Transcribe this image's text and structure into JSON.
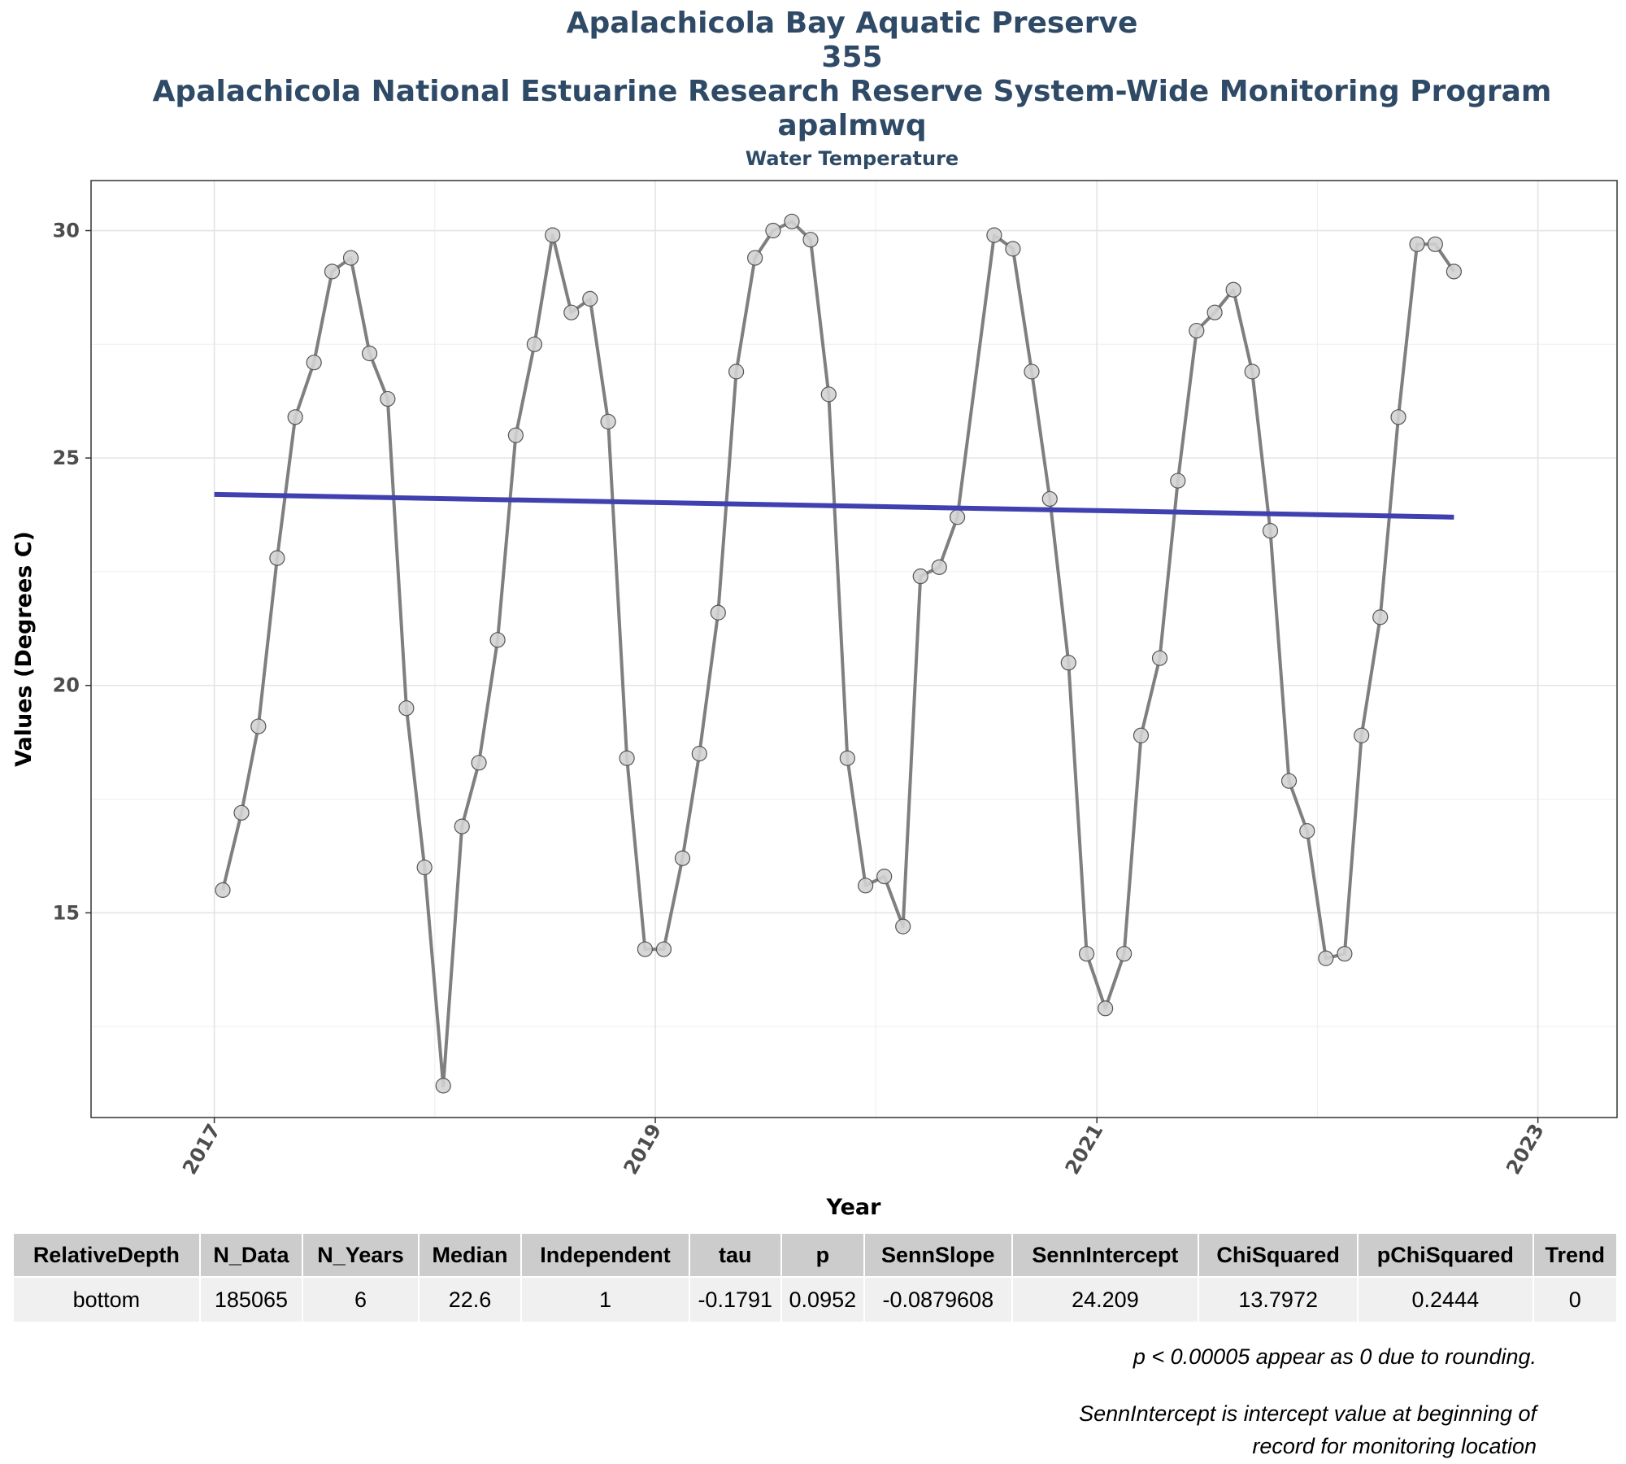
{
  "titles": {
    "line1": "Apalachicola Bay Aquatic Preserve",
    "line2": "355",
    "line3": "Apalachicola National Estuarine Research Reserve System-Wide Monitoring Program",
    "line4": "apalmwq",
    "subtitle": "Water Temperature"
  },
  "chart_data": {
    "type": "line",
    "title": "Apalachicola Bay Aquatic Preserve",
    "subtitle": "Water Temperature",
    "xlabel": "Year",
    "ylabel": "Values (Degrees C)",
    "x_ticks": [
      "2017",
      "2019",
      "2021",
      "2023"
    ],
    "y_ticks": [
      15,
      20,
      25,
      30
    ],
    "xlim": [
      "2016-06-11",
      "2023-05-12"
    ],
    "ylim": [
      10.5,
      31.1
    ],
    "grid": true,
    "series": [
      {
        "values": [
          {
            "x": "2017-01-15",
            "y": 15.5
          },
          {
            "x": "2017-02-15",
            "y": 17.2
          },
          {
            "x": "2017-03-15",
            "y": 19.1
          },
          {
            "x": "2017-04-15",
            "y": 22.8
          },
          {
            "x": "2017-05-15",
            "y": 25.9
          },
          {
            "x": "2017-06-15",
            "y": 27.1
          },
          {
            "x": "2017-07-15",
            "y": 29.1
          },
          {
            "x": "2017-08-15",
            "y": 29.4
          },
          {
            "x": "2017-09-15",
            "y": 27.3
          },
          {
            "x": "2017-10-15",
            "y": 26.3
          },
          {
            "x": "2017-11-15",
            "y": 19.5
          },
          {
            "x": "2017-12-15",
            "y": 16.0
          },
          {
            "x": "2018-01-15",
            "y": 11.2
          },
          {
            "x": "2018-02-15",
            "y": 16.9
          },
          {
            "x": "2018-03-15",
            "y": 18.3
          },
          {
            "x": "2018-04-15",
            "y": 21.0
          },
          {
            "x": "2018-05-15",
            "y": 25.5
          },
          {
            "x": "2018-06-15",
            "y": 27.5
          },
          {
            "x": "2018-07-15",
            "y": 29.9
          },
          {
            "x": "2018-08-15",
            "y": 28.2
          },
          {
            "x": "2018-09-15",
            "y": 28.5
          },
          {
            "x": "2018-10-15",
            "y": 25.8
          },
          {
            "x": "2018-11-15",
            "y": 18.4
          },
          {
            "x": "2018-12-15",
            "y": 14.2
          },
          {
            "x": "2019-01-15",
            "y": 14.2
          },
          {
            "x": "2019-02-15",
            "y": 16.2
          },
          {
            "x": "2019-03-15",
            "y": 18.5
          },
          {
            "x": "2019-04-15",
            "y": 21.6
          },
          {
            "x": "2019-05-15",
            "y": 26.9
          },
          {
            "x": "2019-06-15",
            "y": 29.4
          },
          {
            "x": "2019-07-15",
            "y": 30.0
          },
          {
            "x": "2019-08-15",
            "y": 30.2
          },
          {
            "x": "2019-09-15",
            "y": 29.8
          },
          {
            "x": "2019-10-15",
            "y": 26.4
          },
          {
            "x": "2019-11-15",
            "y": 18.4
          },
          {
            "x": "2019-12-15",
            "y": 15.6
          },
          {
            "x": "2020-01-15",
            "y": 15.8
          },
          {
            "x": "2020-02-15",
            "y": 14.7
          },
          {
            "x": "2020-03-15",
            "y": 22.4
          },
          {
            "x": "2020-04-15",
            "y": 22.6
          },
          {
            "x": "2020-05-15",
            "y": 23.7
          },
          {
            "x": "2020-07-15",
            "y": 29.9
          },
          {
            "x": "2020-08-15",
            "y": 29.6
          },
          {
            "x": "2020-09-15",
            "y": 26.9
          },
          {
            "x": "2020-10-15",
            "y": 24.1
          },
          {
            "x": "2020-11-15",
            "y": 20.5
          },
          {
            "x": "2020-12-15",
            "y": 14.1
          },
          {
            "x": "2021-01-15",
            "y": 12.9
          },
          {
            "x": "2021-02-15",
            "y": 14.1
          },
          {
            "x": "2021-03-15",
            "y": 18.9
          },
          {
            "x": "2021-04-15",
            "y": 20.6
          },
          {
            "x": "2021-05-15",
            "y": 24.5
          },
          {
            "x": "2021-06-15",
            "y": 27.8
          },
          {
            "x": "2021-07-15",
            "y": 28.2
          },
          {
            "x": "2021-08-15",
            "y": 28.7
          },
          {
            "x": "2021-09-15",
            "y": 26.9
          },
          {
            "x": "2021-10-15",
            "y": 23.4
          },
          {
            "x": "2021-11-15",
            "y": 17.9
          },
          {
            "x": "2021-12-15",
            "y": 16.8
          },
          {
            "x": "2022-01-15",
            "y": 14.0
          },
          {
            "x": "2022-02-15",
            "y": 14.1
          },
          {
            "x": "2022-03-15",
            "y": 18.9
          },
          {
            "x": "2022-04-15",
            "y": 21.5
          },
          {
            "x": "2022-05-15",
            "y": 25.9
          },
          {
            "x": "2022-06-15",
            "y": 29.7
          },
          {
            "x": "2022-07-15",
            "y": 29.7
          },
          {
            "x": "2022-08-15",
            "y": 29.1
          }
        ],
        "color": "#7f7f7f"
      },
      {
        "type": "trend",
        "values": [
          {
            "x": "2017-01-01",
            "y": 24.2
          },
          {
            "x": "2022-08-15",
            "y": 23.7
          }
        ],
        "color": "#4040b0"
      }
    ]
  },
  "stats_table": {
    "headers": [
      "RelativeDepth",
      "N_Data",
      "N_Years",
      "Median",
      "Independent",
      "tau",
      "p",
      "SennSlope",
      "SennIntercept",
      "ChiSquared",
      "pChiSquared",
      "Trend"
    ],
    "row": [
      "bottom",
      "185065",
      "6",
      "22.6",
      "1",
      "-0.1791",
      "0.0952",
      "-0.0879608",
      "24.209",
      "13.7972",
      "0.2444",
      "0"
    ]
  },
  "notes": {
    "rounding": "p < 0.00005 appear as 0 due to rounding.",
    "intercept_line1": "SennIntercept is intercept value at beginning of",
    "intercept_line2": "record for monitoring location"
  }
}
